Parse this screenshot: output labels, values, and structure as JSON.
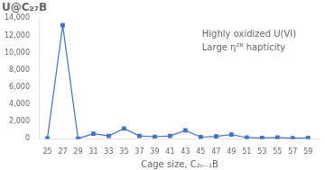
{
  "chart_data": {
    "type": "line",
    "title": "U@C₂₇B",
    "xlabel": "Cage size, C₂ₙ₋₁B",
    "annotations": [
      "Highly oxidized U(VI)",
      "Large η²⁸ hapticity"
    ],
    "x": [
      25,
      27,
      29,
      31,
      33,
      35,
      37,
      39,
      41,
      43,
      45,
      47,
      49,
      51,
      53,
      55,
      57,
      59
    ],
    "values": [
      50,
      13200,
      30,
      600,
      350,
      1200,
      350,
      250,
      350,
      1000,
      200,
      300,
      500,
      150,
      100,
      150,
      80,
      100
    ],
    "color": "#4472C4",
    "marker": "square",
    "xlim": [
      24,
      60.5
    ],
    "xticks": [
      25,
      27,
      29,
      31,
      33,
      35,
      37,
      39,
      41,
      43,
      45,
      47,
      49,
      51,
      53,
      55,
      57,
      59
    ],
    "ylim": [
      0,
      14000
    ],
    "yticks": [
      0,
      2000,
      4000,
      6000,
      8000,
      10000,
      12000,
      14000
    ],
    "grid": false
  }
}
